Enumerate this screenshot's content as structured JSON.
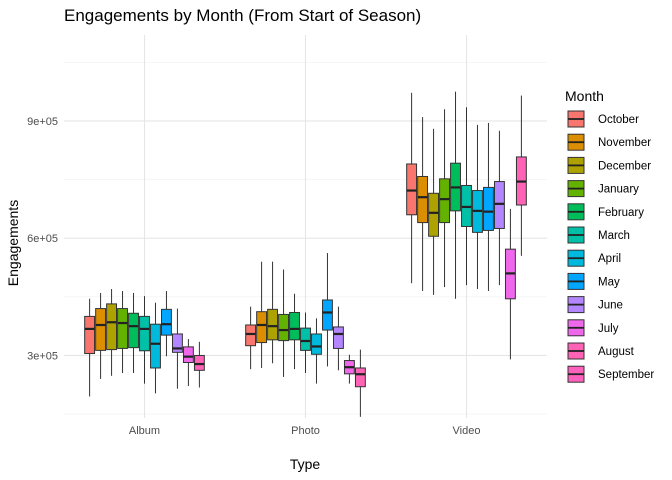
{
  "chart_data": {
    "type": "boxplot",
    "title": "Engagements by Month (From Start of Season)",
    "xlabel": "Type",
    "ylabel": "Engagements",
    "categories": [
      "Album",
      "Photo",
      "Video"
    ],
    "y_ticks": [
      300000,
      600000,
      900000
    ],
    "y_tick_labels": [
      "3e+05",
      "6e+05",
      "9e+05"
    ],
    "ylim": [
      140000,
      1120000
    ],
    "grid": true,
    "legend": {
      "title": "Month",
      "position": "right"
    },
    "series": [
      {
        "name": "October",
        "color": "#F8766D",
        "boxes": [
          {
            "whisker_low": 195000,
            "q1": 305000,
            "median": 368000,
            "q3": 400000,
            "whisker_high": 445000
          },
          {
            "whisker_low": 265000,
            "q1": 325000,
            "median": 355000,
            "q3": 378000,
            "whisker_high": 425000
          },
          {
            "whisker_low": 485000,
            "q1": 660000,
            "median": 722000,
            "q3": 790000,
            "whisker_high": 972000
          }
        ]
      },
      {
        "name": "November",
        "color": "#DB8E00",
        "boxes": [
          {
            "whisker_low": 240000,
            "q1": 313000,
            "median": 378000,
            "q3": 420000,
            "whisker_high": 460000
          },
          {
            "whisker_low": 268000,
            "q1": 333000,
            "median": 378000,
            "q3": 412000,
            "whisker_high": 540000
          },
          {
            "whisker_low": 465000,
            "q1": 640000,
            "median": 705000,
            "q3": 758000,
            "whisker_high": 910000
          }
        ]
      },
      {
        "name": "December",
        "color": "#AEA200",
        "boxes": [
          {
            "whisker_low": 248000,
            "q1": 315000,
            "median": 385000,
            "q3": 432000,
            "whisker_high": 470000
          },
          {
            "whisker_low": 280000,
            "q1": 340000,
            "median": 375000,
            "q3": 418000,
            "whisker_high": 540000
          },
          {
            "whisker_low": 455000,
            "q1": 605000,
            "median": 665000,
            "q3": 715000,
            "whisker_high": 880000
          }
        ]
      },
      {
        "name": "January",
        "color": "#64B200",
        "boxes": [
          {
            "whisker_low": 255000,
            "q1": 318000,
            "median": 383000,
            "q3": 420000,
            "whisker_high": 465000
          },
          {
            "whisker_low": 245000,
            "q1": 338000,
            "median": 365000,
            "q3": 405000,
            "whisker_high": 520000
          },
          {
            "whisker_low": 475000,
            "q1": 640000,
            "median": 700000,
            "q3": 752000,
            "whisker_high": 930000
          }
        ]
      },
      {
        "name": "February",
        "color": "#00BD5C",
        "boxes": [
          {
            "whisker_low": 255000,
            "q1": 320000,
            "median": 375000,
            "q3": 408000,
            "whisker_high": 460000
          },
          {
            "whisker_low": 265000,
            "q1": 340000,
            "median": 368000,
            "q3": 410000,
            "whisker_high": 458000
          },
          {
            "whisker_low": 445000,
            "q1": 670000,
            "median": 730000,
            "q3": 792000,
            "whisker_high": 975000
          }
        ]
      },
      {
        "name": "March",
        "color": "#00C1A7",
        "boxes": [
          {
            "whisker_low": 228000,
            "q1": 312000,
            "median": 368000,
            "q3": 400000,
            "whisker_high": 452000
          },
          {
            "whisker_low": 255000,
            "q1": 313000,
            "median": 337000,
            "q3": 370000,
            "whisker_high": 410000
          },
          {
            "whisker_low": 480000,
            "q1": 630000,
            "median": 680000,
            "q3": 735000,
            "whisker_high": 935000
          }
        ]
      },
      {
        "name": "April",
        "color": "#00BADE",
        "boxes": [
          {
            "whisker_low": 203000,
            "q1": 268000,
            "median": 330000,
            "q3": 380000,
            "whisker_high": 435000
          },
          {
            "whisker_low": 228000,
            "q1": 303000,
            "median": 323000,
            "q3": 355000,
            "whisker_high": 395000
          },
          {
            "whisker_low": 470000,
            "q1": 615000,
            "median": 670000,
            "q3": 722000,
            "whisker_high": 890000
          }
        ]
      },
      {
        "name": "May",
        "color": "#00A6FF",
        "boxes": [
          {
            "whisker_low": 298000,
            "q1": 352000,
            "median": 380000,
            "q3": 418000,
            "whisker_high": 465000
          },
          {
            "whisker_low": 272000,
            "q1": 365000,
            "median": 410000,
            "q3": 442000,
            "whisker_high": 562000
          },
          {
            "whisker_low": 465000,
            "q1": 620000,
            "median": 668000,
            "q3": 730000,
            "whisker_high": 895000
          }
        ]
      },
      {
        "name": "June",
        "color": "#B385FF",
        "boxes": [
          {
            "whisker_low": 215000,
            "q1": 308000,
            "median": 318000,
            "q3": 355000,
            "whisker_high": 420000
          },
          {
            "whisker_low": 262000,
            "q1": 318000,
            "median": 355000,
            "q3": 373000,
            "whisker_high": 425000
          },
          {
            "whisker_low": 480000,
            "q1": 625000,
            "median": 688000,
            "q3": 745000,
            "whisker_high": 875000
          }
        ]
      },
      {
        "name": "July",
        "color": "#EF67EB",
        "boxes": [
          {
            "whisker_low": 222000,
            "q1": 282000,
            "median": 297000,
            "q3": 322000,
            "whisker_high": 342000
          },
          {
            "whisker_low": 228000,
            "q1": 253000,
            "median": 270000,
            "q3": 287000,
            "whisker_high": 302000
          },
          {
            "whisker_low": 290000,
            "q1": 445000,
            "median": 510000,
            "q3": 572000,
            "whisker_high": 675000
          }
        ]
      },
      {
        "name": "August",
        "color": "#FF63B6",
        "boxes": [
          {
            "whisker_low": 218000,
            "q1": 262000,
            "median": 278000,
            "q3": 300000,
            "whisker_high": 335000
          },
          {
            "whisker_low": 143000,
            "q1": 220000,
            "median": 252000,
            "q3": 268000,
            "whisker_high": 315000
          },
          {
            "whisker_low": 555000,
            "q1": 685000,
            "median": 745000,
            "q3": 808000,
            "whisker_high": 965000
          }
        ]
      }
    ]
  },
  "legend_last": {
    "name": "September",
    "color": "#FF62BC"
  }
}
